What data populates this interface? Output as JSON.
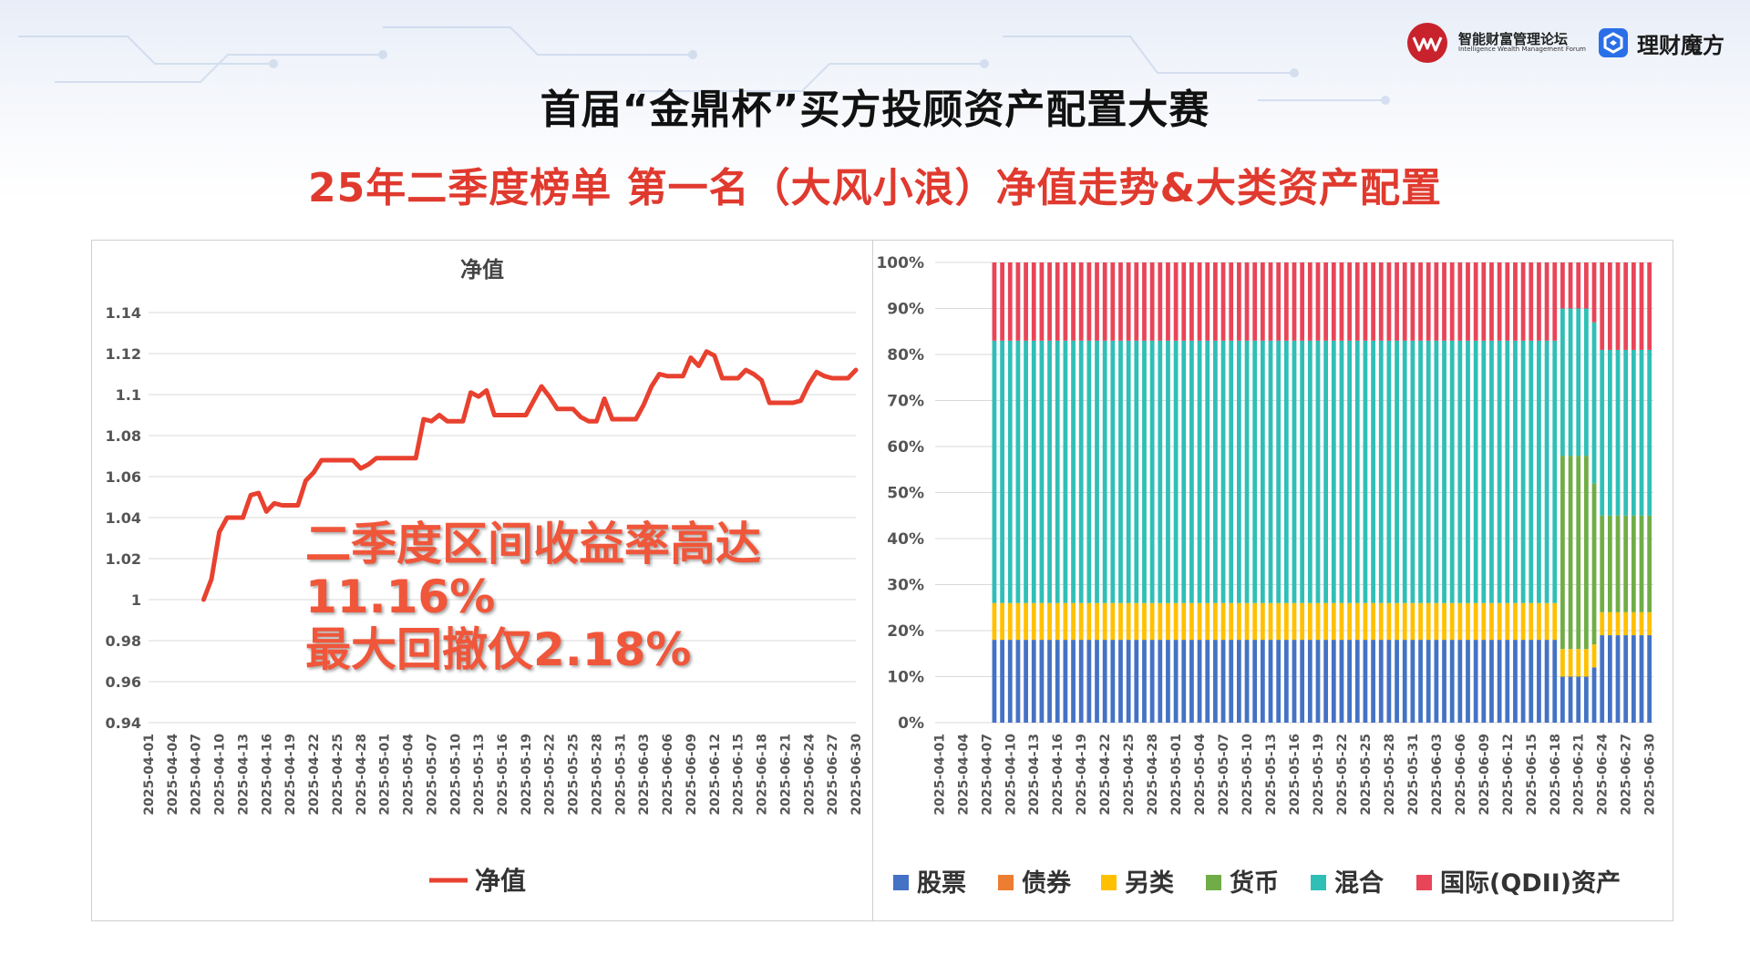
{
  "header": {
    "forum_name_cn": "智能财富管理论坛",
    "forum_name_en": "Intelligence Wealth Management Forum",
    "brand_name": "理财魔方",
    "title": "首届“金鼎杯”买方投顾资产配置大赛",
    "subtitle": "25年二季度榜单 第一名（大风小浪）净值走势&大类资产配置"
  },
  "overlay": {
    "line1": "二季度区间收益率高达",
    "line2": "11.16%",
    "line3": "最大回撤仅2.18%"
  },
  "colors": {
    "nav_line": "#e8412f",
    "stock": "#4472c4",
    "bond": "#ed7d31",
    "alternative": "#ffc000",
    "cash": "#70ad47",
    "mixed": "#2fbfb6",
    "qdii": "#e84558",
    "title_red": "#e03a2f"
  },
  "chart_data": [
    {
      "type": "line",
      "title": "净值",
      "legend": [
        "净值"
      ],
      "legend_position": "bottom",
      "ylim": [
        0.94,
        1.14
      ],
      "yticks": [
        "0.94",
        "0.96",
        "0.98",
        "1",
        "1.02",
        "1.04",
        "1.06",
        "1.08",
        "1.1",
        "1.12",
        "1.14"
      ],
      "xticks": [
        "2025-04-01",
        "2025-04-04",
        "2025-04-07",
        "2025-04-10",
        "2025-04-13",
        "2025-04-16",
        "2025-04-19",
        "2025-04-22",
        "2025-04-25",
        "2025-04-28",
        "2025-05-01",
        "2025-05-04",
        "2025-05-07",
        "2025-05-10",
        "2025-05-13",
        "2025-05-16",
        "2025-05-19",
        "2025-05-22",
        "2025-05-25",
        "2025-05-28",
        "2025-05-31",
        "2025-06-03",
        "2025-06-06",
        "2025-06-09",
        "2025-06-12",
        "2025-06-15",
        "2025-06-18",
        "2025-06-21",
        "2025-06-24",
        "2025-06-27",
        "2025-06-30"
      ],
      "series": [
        {
          "name": "净值",
          "x": [
            "2025-04-08",
            "2025-04-09",
            "2025-04-10",
            "2025-04-11",
            "2025-04-12",
            "2025-04-13",
            "2025-04-14",
            "2025-04-15",
            "2025-04-16",
            "2025-04-17",
            "2025-04-18",
            "2025-04-19",
            "2025-04-20",
            "2025-04-21",
            "2025-04-22",
            "2025-04-23",
            "2025-04-24",
            "2025-04-25",
            "2025-04-26",
            "2025-04-27",
            "2025-04-28",
            "2025-04-29",
            "2025-04-30",
            "2025-05-01",
            "2025-05-02",
            "2025-05-03",
            "2025-05-04",
            "2025-05-05",
            "2025-05-06",
            "2025-05-07",
            "2025-05-08",
            "2025-05-09",
            "2025-05-10",
            "2025-05-11",
            "2025-05-12",
            "2025-05-13",
            "2025-05-14",
            "2025-05-15",
            "2025-05-16",
            "2025-05-17",
            "2025-05-18",
            "2025-05-19",
            "2025-05-20",
            "2025-05-21",
            "2025-05-22",
            "2025-05-23",
            "2025-05-24",
            "2025-05-25",
            "2025-05-26",
            "2025-05-27",
            "2025-05-28",
            "2025-05-29",
            "2025-05-30",
            "2025-05-31",
            "2025-06-01",
            "2025-06-02",
            "2025-06-03",
            "2025-06-04",
            "2025-06-05",
            "2025-06-06",
            "2025-06-07",
            "2025-06-08",
            "2025-06-09",
            "2025-06-10",
            "2025-06-11",
            "2025-06-12",
            "2025-06-13",
            "2025-06-14",
            "2025-06-15",
            "2025-06-16",
            "2025-06-17",
            "2025-06-18",
            "2025-06-19",
            "2025-06-20",
            "2025-06-21",
            "2025-06-22",
            "2025-06-23",
            "2025-06-24",
            "2025-06-25",
            "2025-06-26",
            "2025-06-27",
            "2025-06-28",
            "2025-06-29",
            "2025-06-30"
          ],
          "values": [
            1.0,
            1.01,
            1.033,
            1.04,
            1.04,
            1.04,
            1.051,
            1.052,
            1.043,
            1.047,
            1.046,
            1.046,
            1.046,
            1.058,
            1.062,
            1.068,
            1.068,
            1.068,
            1.068,
            1.068,
            1.064,
            1.066,
            1.069,
            1.069,
            1.069,
            1.069,
            1.069,
            1.069,
            1.088,
            1.087,
            1.09,
            1.087,
            1.087,
            1.087,
            1.101,
            1.099,
            1.102,
            1.09,
            1.09,
            1.09,
            1.09,
            1.09,
            1.097,
            1.104,
            1.099,
            1.093,
            1.093,
            1.093,
            1.089,
            1.087,
            1.087,
            1.098,
            1.088,
            1.088,
            1.088,
            1.088,
            1.095,
            1.104,
            1.11,
            1.109,
            1.109,
            1.109,
            1.118,
            1.114,
            1.121,
            1.119,
            1.108,
            1.108,
            1.108,
            1.112,
            1.11,
            1.107,
            1.096,
            1.096,
            1.096,
            1.096,
            1.097,
            1.105,
            1.111,
            1.109,
            1.108,
            1.108,
            1.108,
            1.112
          ]
        }
      ]
    },
    {
      "type": "bar",
      "stacked": "percent",
      "ylim": [
        0,
        100
      ],
      "yticks": [
        "0%",
        "10%",
        "20%",
        "30%",
        "40%",
        "50%",
        "60%",
        "70%",
        "80%",
        "90%",
        "100%"
      ],
      "legend_position": "bottom",
      "categories_start": "2025-04-01",
      "categories_end": "2025-06-30",
      "first_bar": "2025-04-08",
      "xticks": [
        "2025-04-01",
        "2025-04-04",
        "2025-04-07",
        "2025-04-10",
        "2025-04-13",
        "2025-04-16",
        "2025-04-19",
        "2025-04-22",
        "2025-04-25",
        "2025-04-28",
        "2025-05-01",
        "2025-05-04",
        "2025-05-07",
        "2025-05-10",
        "2025-05-13",
        "2025-05-16",
        "2025-05-19",
        "2025-05-22",
        "2025-05-25",
        "2025-05-28",
        "2025-05-31",
        "2025-06-03",
        "2025-06-06",
        "2025-06-09",
        "2025-06-12",
        "2025-06-15",
        "2025-06-18",
        "2025-06-21",
        "2025-06-24",
        "2025-06-27",
        "2025-06-30"
      ],
      "series_names": [
        "股票",
        "债券",
        "另类",
        "货币",
        "混合",
        "国际(QDII)资产"
      ],
      "segments": [
        {
          "from": "2025-04-08",
          "to": "2025-06-18",
          "values": [
            18,
            0,
            8,
            0,
            57,
            17
          ]
        },
        {
          "from": "2025-06-19",
          "to": "2025-06-22",
          "values": [
            10,
            0,
            6,
            42,
            32,
            10
          ]
        },
        {
          "from": "2025-06-23",
          "to": "2025-06-23",
          "values": [
            12,
            0,
            5,
            35,
            35,
            13
          ]
        },
        {
          "from": "2025-06-24",
          "to": "2025-06-30",
          "values": [
            19,
            0,
            5,
            21,
            36,
            19
          ]
        }
      ]
    }
  ]
}
